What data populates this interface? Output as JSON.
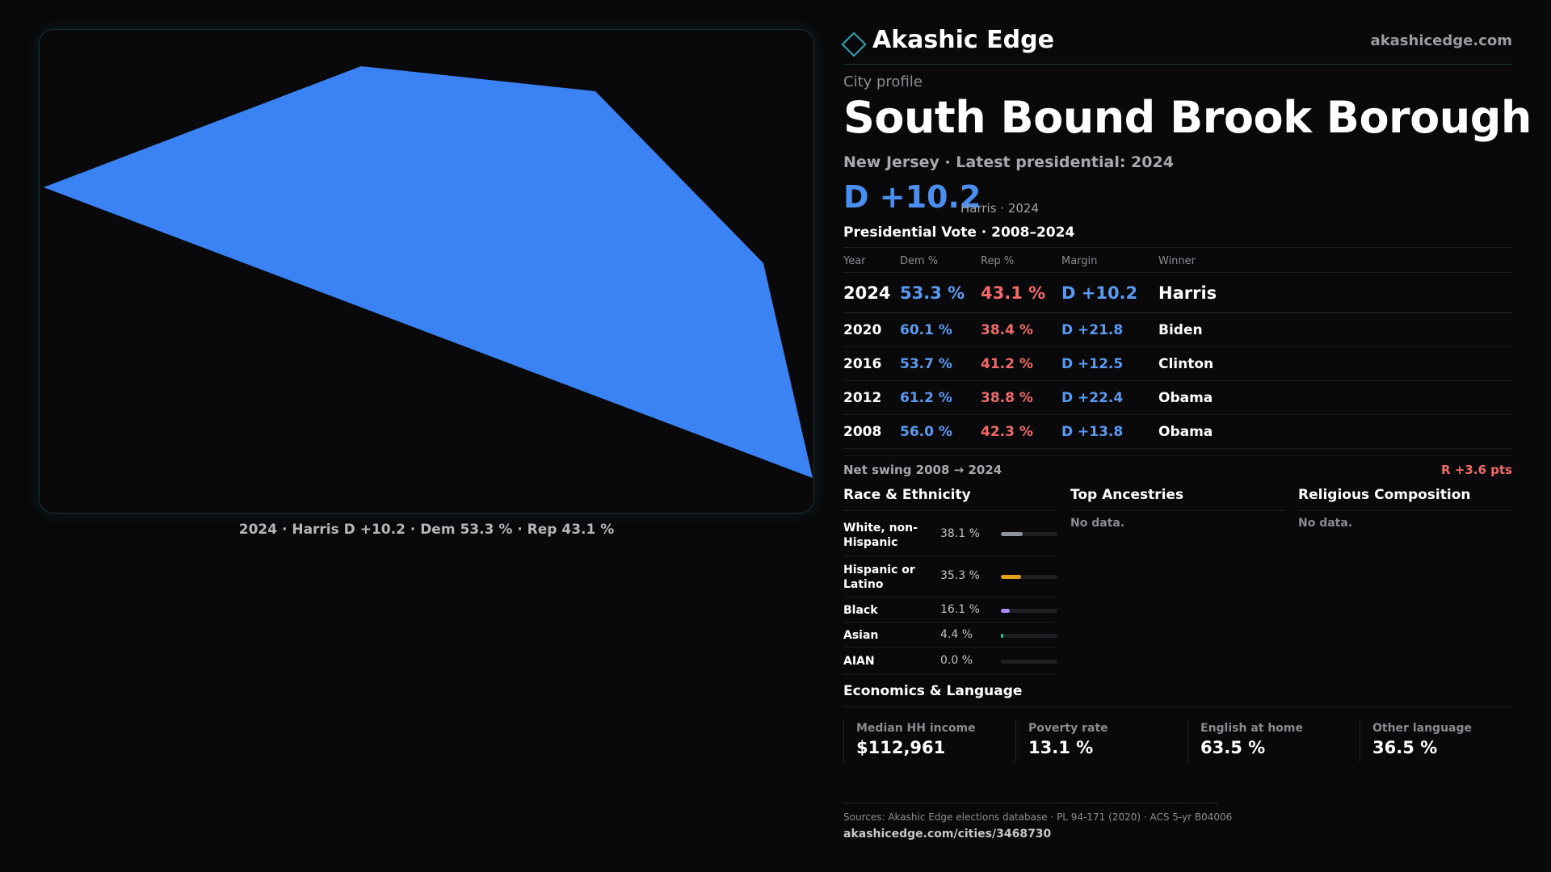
{
  "brand": {
    "name": "Akashic Edge",
    "url": "akashicedge.com",
    "icon": "diamond-icon",
    "accent": "#2aa6b0"
  },
  "map": {
    "fill": "#3b82f4",
    "caption": "2024 · Harris D +10.2 · Dem 53.3 % · Rep 43.1 %"
  },
  "profile": {
    "kicker": "City profile",
    "title": "South Bound Brook Borough",
    "subtitle": "New Jersey · Latest presidential: 2024",
    "headline_margin": "D +10.2",
    "headline_note": "Harris · 2024"
  },
  "vote": {
    "title": "Presidential Vote · 2008–2024",
    "headers": {
      "year": "Year",
      "dem": "Dem %",
      "rep": "Rep %",
      "margin": "Margin",
      "winner": "Winner"
    },
    "rows": [
      {
        "year": "2024",
        "dem": "53.3 %",
        "rep": "43.1 %",
        "margin": "D +10.2",
        "winner": "Harris"
      },
      {
        "year": "2020",
        "dem": "60.1 %",
        "rep": "38.4 %",
        "margin": "D +21.8",
        "winner": "Biden"
      },
      {
        "year": "2016",
        "dem": "53.7 %",
        "rep": "41.2 %",
        "margin": "D +12.5",
        "winner": "Clinton"
      },
      {
        "year": "2012",
        "dem": "61.2 %",
        "rep": "38.8 %",
        "margin": "D +22.4",
        "winner": "Obama"
      },
      {
        "year": "2008",
        "dem": "56.0 %",
        "rep": "42.3 %",
        "margin": "D +13.8",
        "winner": "Obama"
      }
    ],
    "swing_label": "Net swing 2008 → 2024",
    "swing_value": "R +3.6 pts"
  },
  "race": {
    "title": "Race & Ethnicity",
    "rows": [
      {
        "label": "White, non-Hispanic",
        "pct": "38.1 %",
        "value": 38.1,
        "color": "#8f93a0"
      },
      {
        "label": "Hispanic or Latino",
        "pct": "35.3 %",
        "value": 35.3,
        "color": "#e3a21a"
      },
      {
        "label": "Black",
        "pct": "16.1 %",
        "value": 16.1,
        "color": "#a78bfa"
      },
      {
        "label": "Asian",
        "pct": "4.4 %",
        "value": 4.4,
        "color": "#2fc7a0"
      },
      {
        "label": "AIAN",
        "pct": "0.0 %",
        "value": 0.0,
        "color": "#8f93a0"
      }
    ]
  },
  "ancestries": {
    "title": "Top Ancestries",
    "empty": "No data."
  },
  "religion": {
    "title": "Religious Composition",
    "empty": "No data."
  },
  "economics": {
    "title": "Economics & Language",
    "cards": [
      {
        "label": "Median HH income",
        "value": "$112,961"
      },
      {
        "label": "Poverty rate",
        "value": "13.1 %"
      },
      {
        "label": "English at home",
        "value": "63.5 %"
      },
      {
        "label": "Other language",
        "value": "36.5 %"
      }
    ]
  },
  "footer": {
    "sources": "Sources: Akashic Edge elections database · PL 94-171 (2020) · ACS 5-yr B04006",
    "url": "akashicedge.com/cities/3468730"
  }
}
